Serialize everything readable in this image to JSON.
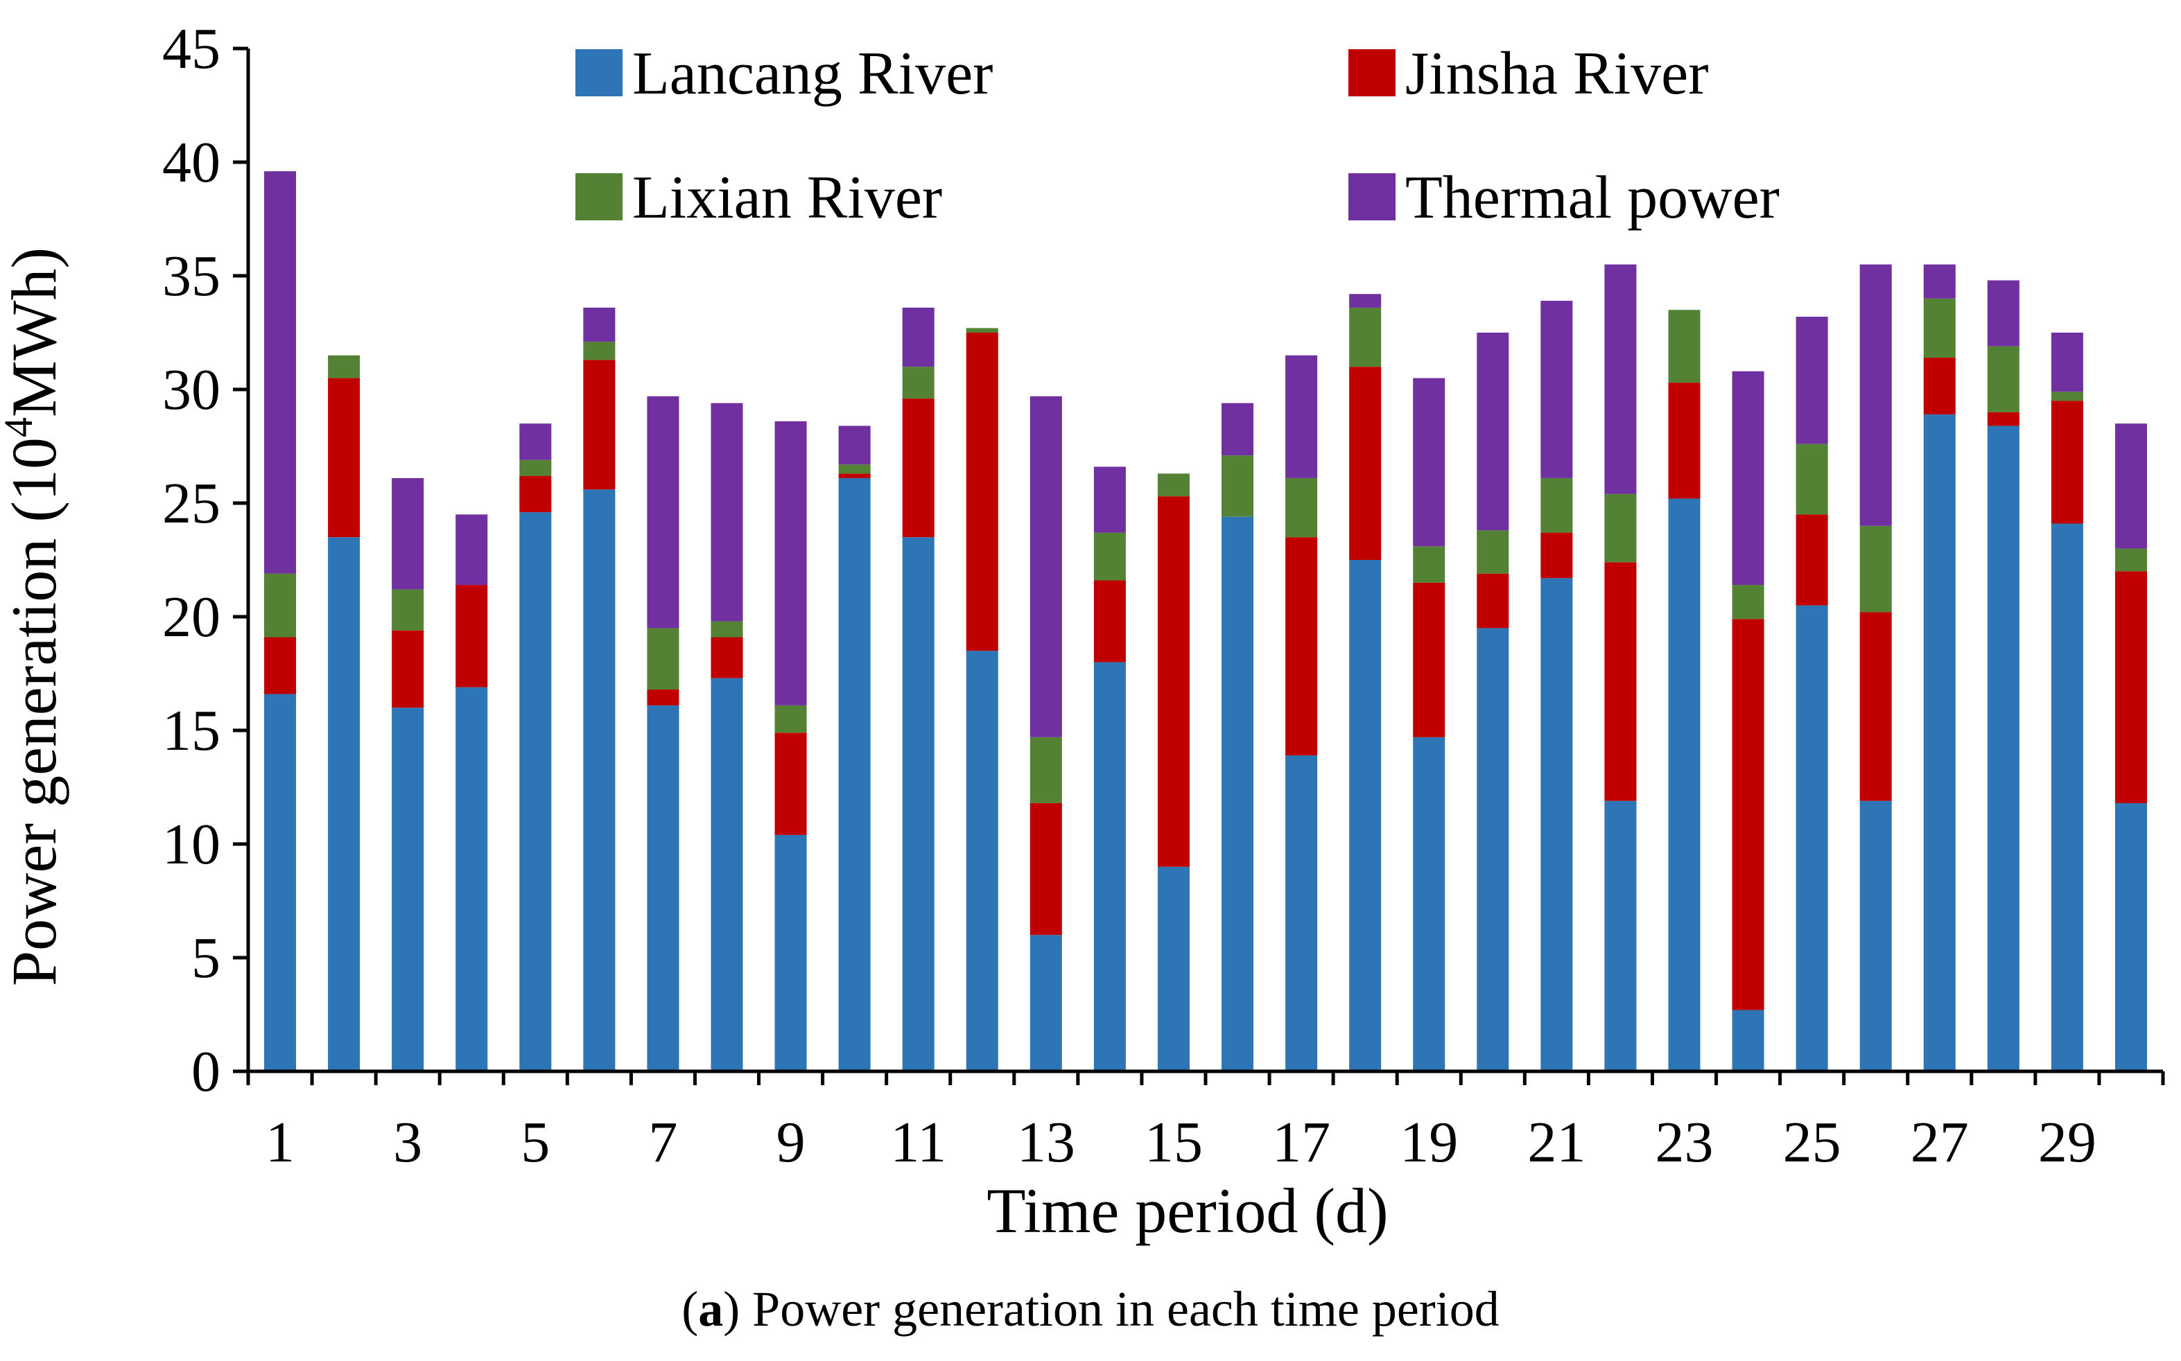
{
  "chart_data": {
    "type": "bar",
    "stacked": true,
    "title": "",
    "xlabel": "Time period (d)",
    "ylabel_prefix": "Power generation (10",
    "ylabel_sup": "4",
    "ylabel_suffix": "MWh)",
    "ylim": [
      0,
      45
    ],
    "yticks": [
      0,
      5,
      10,
      15,
      20,
      25,
      30,
      35,
      40,
      45
    ],
    "x": [
      1,
      2,
      3,
      4,
      5,
      6,
      7,
      8,
      9,
      10,
      11,
      12,
      13,
      14,
      15,
      16,
      17,
      18,
      19,
      20,
      21,
      22,
      23,
      24,
      25,
      26,
      27,
      28,
      29,
      30
    ],
    "xtick_labels": [
      "1",
      "3",
      "5",
      "7",
      "9",
      "11",
      "13",
      "15",
      "17",
      "19",
      "21",
      "23",
      "25",
      "27",
      "29"
    ],
    "legend_position": "top",
    "grid": false,
    "series": [
      {
        "name": "Lancang River",
        "color": "#2E75B6",
        "values": [
          16.6,
          23.5,
          16.0,
          16.9,
          24.6,
          25.6,
          16.1,
          17.3,
          10.4,
          26.1,
          23.5,
          18.5,
          6.0,
          18.0,
          9.0,
          24.4,
          13.9,
          22.5,
          14.7,
          19.5,
          21.7,
          11.9,
          25.2,
          2.7,
          20.5,
          11.9,
          28.9,
          28.4,
          24.1,
          11.8
        ]
      },
      {
        "name": "Jinsha River",
        "color": "#C00000",
        "values": [
          2.5,
          7.0,
          3.4,
          4.5,
          1.6,
          5.7,
          0.7,
          1.8,
          4.5,
          0.2,
          6.1,
          14.0,
          5.8,
          3.6,
          16.3,
          0.0,
          9.6,
          8.5,
          6.8,
          2.4,
          2.0,
          10.5,
          5.1,
          17.2,
          4.0,
          8.3,
          2.5,
          0.6,
          5.4,
          10.2
        ]
      },
      {
        "name": "Lixian River",
        "color": "#548235",
        "values": [
          2.8,
          1.0,
          1.8,
          0.0,
          0.7,
          0.8,
          2.7,
          0.7,
          1.2,
          0.4,
          1.4,
          0.2,
          2.9,
          2.1,
          1.0,
          2.7,
          2.6,
          2.6,
          1.6,
          1.9,
          2.4,
          3.0,
          3.2,
          1.5,
          3.1,
          3.8,
          2.6,
          2.9,
          0.4,
          1.0
        ]
      },
      {
        "name": "Thermal power",
        "color": "#7030A0",
        "values": [
          17.7,
          0.0,
          4.9,
          3.1,
          1.6,
          1.5,
          10.2,
          9.6,
          12.5,
          1.7,
          2.6,
          0.0,
          15.0,
          2.9,
          0.0,
          2.3,
          5.4,
          0.6,
          7.4,
          8.7,
          7.8,
          10.1,
          0.0,
          9.4,
          5.6,
          11.5,
          1.5,
          2.9,
          2.6,
          5.5
        ]
      }
    ]
  },
  "caption": {
    "letter": "a",
    "text": " Power generation in each time period"
  }
}
